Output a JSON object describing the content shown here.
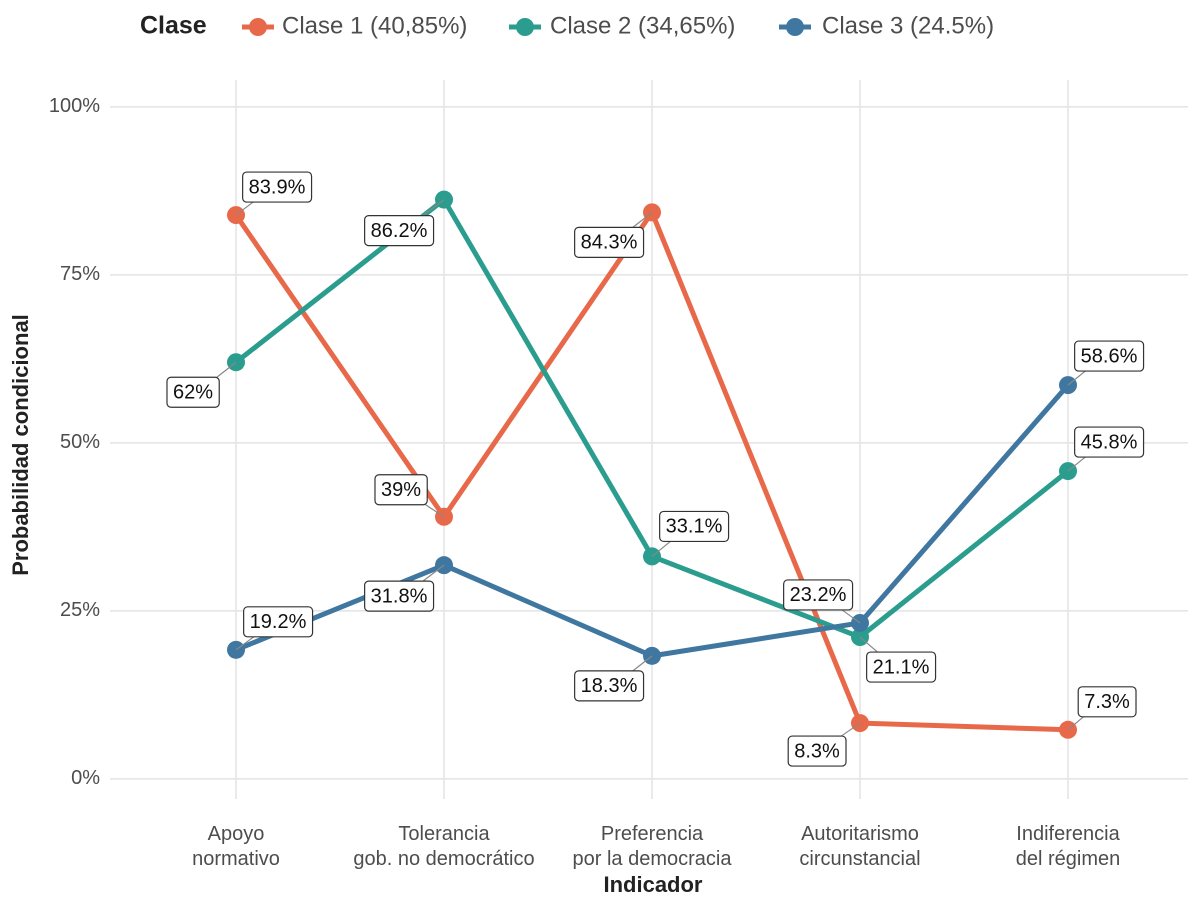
{
  "chart_data": {
    "type": "line",
    "legend_title": "Clase",
    "x_label": "Indicador",
    "y_label": "Probabilidad condicional",
    "categories": [
      "Apoyo\nnormativo",
      "Tolerancia\ngob. no democrático",
      "Preferencia\npor la democracia",
      "Autoritarismo\ncircunstancial",
      "Indiferencia\ndel régimen"
    ],
    "series": [
      {
        "name": "Clase 1 (40,85%)",
        "color": "#e8694a",
        "values": [
          83.9,
          39,
          84.3,
          8.3,
          7.3
        ],
        "value_labels": [
          "83.9%",
          "39%",
          "84.3%",
          "8.3%",
          "7.3%"
        ]
      },
      {
        "name": "Clase 2 (34,65%)",
        "color": "#2a9d8f",
        "values": [
          62,
          86.2,
          33.1,
          21.1,
          45.8
        ],
        "value_labels": [
          "62%",
          "86.2%",
          "33.1%",
          "21.1%",
          "45.8%"
        ]
      },
      {
        "name": "Clase 3 (24.5%)",
        "color": "#3f77a0",
        "values": [
          19.2,
          31.8,
          18.3,
          23.2,
          58.6
        ],
        "value_labels": [
          "19.2%",
          "31.8%",
          "18.3%",
          "23.2%",
          "58.6%"
        ]
      }
    ],
    "ylim": [
      -3,
      104
    ],
    "yticks": [
      {
        "value": 0,
        "label": "0%"
      },
      {
        "value": 25,
        "label": "25%"
      },
      {
        "value": 50,
        "label": "50%"
      },
      {
        "value": 75,
        "label": "75%"
      },
      {
        "value": 100,
        "label": "100%"
      }
    ],
    "grid": true,
    "legend_position": "top"
  }
}
